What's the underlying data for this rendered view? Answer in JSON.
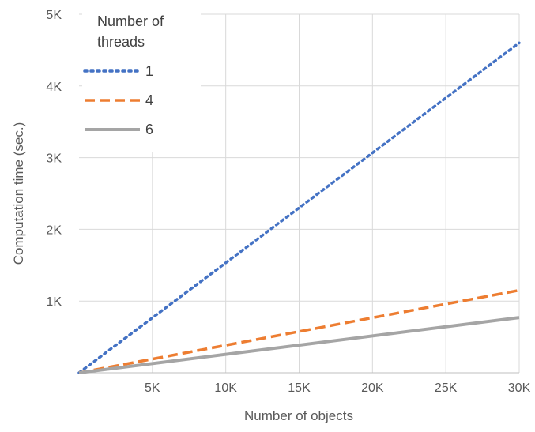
{
  "chart_data": {
    "type": "line",
    "xlabel": "Number of objects",
    "ylabel": "Computation time (sec.)",
    "xlim": [
      0,
      30000
    ],
    "ylim": [
      0,
      5000
    ],
    "x_ticks": [
      {
        "value": 5000,
        "label": "5K"
      },
      {
        "value": 10000,
        "label": "10K"
      },
      {
        "value": 15000,
        "label": "15K"
      },
      {
        "value": 20000,
        "label": "20K"
      },
      {
        "value": 25000,
        "label": "25K"
      },
      {
        "value": 30000,
        "label": "30K"
      }
    ],
    "y_ticks": [
      {
        "value": 1000,
        "label": "1K"
      },
      {
        "value": 2000,
        "label": "2K"
      },
      {
        "value": 3000,
        "label": "3K"
      },
      {
        "value": 4000,
        "label": "4K"
      },
      {
        "value": 5000,
        "label": "5K"
      }
    ],
    "grid": true,
    "legend": {
      "title_lines": [
        "Number of",
        "threads"
      ],
      "placement": "top-left"
    },
    "series": [
      {
        "name": "1",
        "color": "#4472C4",
        "style": "dotted",
        "x": [
          0,
          30000
        ],
        "y": [
          0,
          4600
        ]
      },
      {
        "name": "4",
        "color": "#ED7D31",
        "style": "dashed",
        "x": [
          0,
          30000
        ],
        "y": [
          0,
          1150
        ]
      },
      {
        "name": "6",
        "color": "#A5A5A5",
        "style": "solid",
        "x": [
          0,
          30000
        ],
        "y": [
          0,
          770
        ]
      }
    ]
  }
}
